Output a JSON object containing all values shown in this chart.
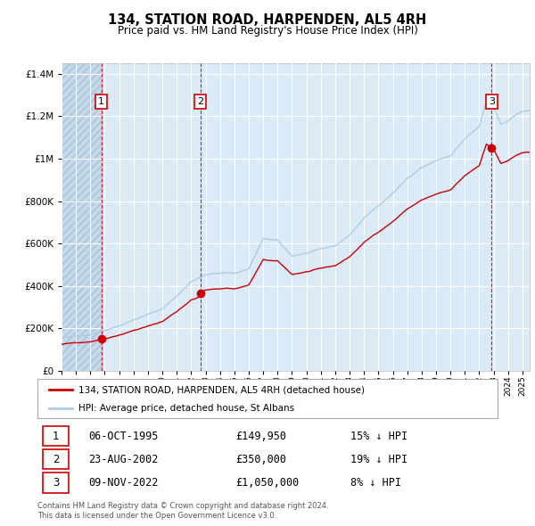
{
  "title": "134, STATION ROAD, HARPENDEN, AL5 4RH",
  "subtitle": "Price paid vs. HM Land Registry's House Price Index (HPI)",
  "legend_line1": "134, STATION ROAD, HARPENDEN, AL5 4RH (detached house)",
  "legend_line2": "HPI: Average price, detached house, St Albans",
  "transactions": [
    {
      "num": 1,
      "date": "06-OCT-1995",
      "price": 149950,
      "pct": "15%",
      "dir": "↓",
      "x_year": 1995.77
    },
    {
      "num": 2,
      "date": "23-AUG-2002",
      "price": 350000,
      "pct": "19%",
      "dir": "↓",
      "x_year": 2002.64
    },
    {
      "num": 3,
      "date": "09-NOV-2022",
      "price": 1050000,
      "pct": "8%",
      "dir": "↓",
      "x_year": 2022.86
    }
  ],
  "hpi_color": "#aecde3",
  "price_color": "#cc0000",
  "dot_color": "#cc0000",
  "vline_color": "#cc0000",
  "background_color": "#daeaf7",
  "grid_color": "#ffffff",
  "ylim": [
    0,
    1450000
  ],
  "xlim_start": 1993.0,
  "xlim_end": 2025.5,
  "footer_line1": "Contains HM Land Registry data © Crown copyright and database right 2024.",
  "footer_line2": "This data is licensed under the Open Government Licence v3.0.",
  "label_bg": "#ffffff",
  "label_border": "#cc0000"
}
